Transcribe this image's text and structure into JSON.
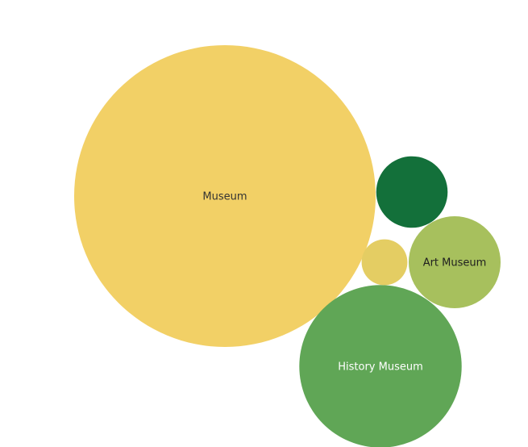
{
  "chart_data": {
    "type": "bubble",
    "title": "",
    "legend": "none",
    "bubbles": [
      {
        "label": "Museum",
        "value": 100,
        "color": "#F2D066",
        "label_color": "#333333"
      },
      {
        "label": "History Museum",
        "value": 29,
        "color": "#60A656",
        "label_color": "#ffffff"
      },
      {
        "label": "Art Museum",
        "value": 9.3,
        "color": "#A7C05D",
        "label_color": "#1f1f1f"
      },
      {
        "label": "",
        "value": 5.6,
        "color": "#13703A",
        "label_color": "#ffffff"
      },
      {
        "label": "",
        "value": 2.3,
        "color": "#E4CD63",
        "label_color": "#333333"
      }
    ]
  }
}
